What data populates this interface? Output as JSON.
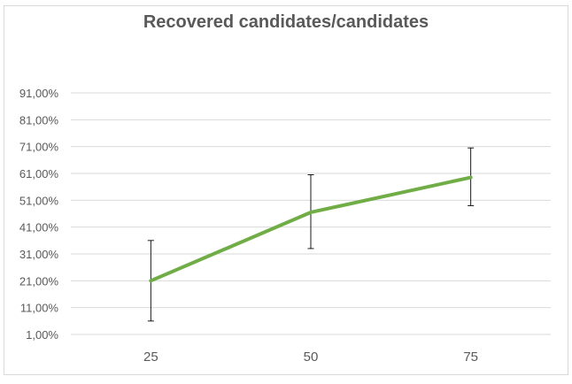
{
  "chart_data": {
    "type": "line",
    "title": "Recovered candidates/candidates",
    "xlabel": "",
    "ylabel": "",
    "categories": [
      "25",
      "50",
      "75"
    ],
    "yticks": [
      "1,00%",
      "11,00%",
      "21,00%",
      "31,00%",
      "41,00%",
      "51,00%",
      "61,00%",
      "71,00%",
      "81,00%",
      "91,00%"
    ],
    "ylim": [
      1,
      91
    ],
    "grid": true,
    "legend": "none",
    "series": [
      {
        "values": [
          21,
          46.5,
          59.5
        ],
        "error_low": [
          6,
          33,
          49
        ],
        "error_high": [
          36,
          60.5,
          70.5
        ],
        "color": "#70ad47"
      }
    ],
    "gridline_color": "#d9d9d9",
    "text_color": "#595959",
    "errorbar_color": "#000000"
  }
}
